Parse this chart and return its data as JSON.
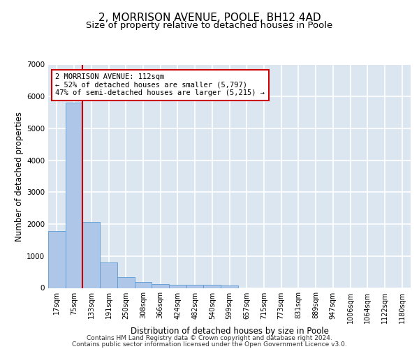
{
  "title1": "2, MORRISON AVENUE, POOLE, BH12 4AD",
  "title2": "Size of property relative to detached houses in Poole",
  "xlabel": "Distribution of detached houses by size in Poole",
  "ylabel": "Number of detached properties",
  "bar_labels": [
    "17sqm",
    "75sqm",
    "133sqm",
    "191sqm",
    "250sqm",
    "308sqm",
    "366sqm",
    "424sqm",
    "482sqm",
    "540sqm",
    "599sqm",
    "657sqm",
    "715sqm",
    "773sqm",
    "831sqm",
    "889sqm",
    "947sqm",
    "1006sqm",
    "1064sqm",
    "1122sqm",
    "1180sqm"
  ],
  "bar_values": [
    1780,
    5800,
    2060,
    800,
    330,
    195,
    115,
    105,
    95,
    90,
    75,
    0,
    0,
    0,
    0,
    0,
    0,
    0,
    0,
    0,
    0
  ],
  "bar_color": "#aec6e8",
  "bar_edge_color": "#5b9bd5",
  "vline_color": "#cc0000",
  "annotation_text": "2 MORRISON AVENUE: 112sqm\n← 52% of detached houses are smaller (5,797)\n47% of semi-detached houses are larger (5,215) →",
  "annotation_box_color": "white",
  "annotation_box_edge": "#cc0000",
  "ylim": [
    0,
    7000
  ],
  "yticks": [
    0,
    1000,
    2000,
    3000,
    4000,
    5000,
    6000,
    7000
  ],
  "background_color": "#dce6f1",
  "grid_color": "white",
  "footer1": "Contains HM Land Registry data © Crown copyright and database right 2024.",
  "footer2": "Contains public sector information licensed under the Open Government Licence v3.0.",
  "title1_fontsize": 11,
  "title2_fontsize": 9.5,
  "axis_label_fontsize": 8.5,
  "tick_fontsize": 7,
  "footer_fontsize": 6.5,
  "vline_bar_index": 1.5
}
